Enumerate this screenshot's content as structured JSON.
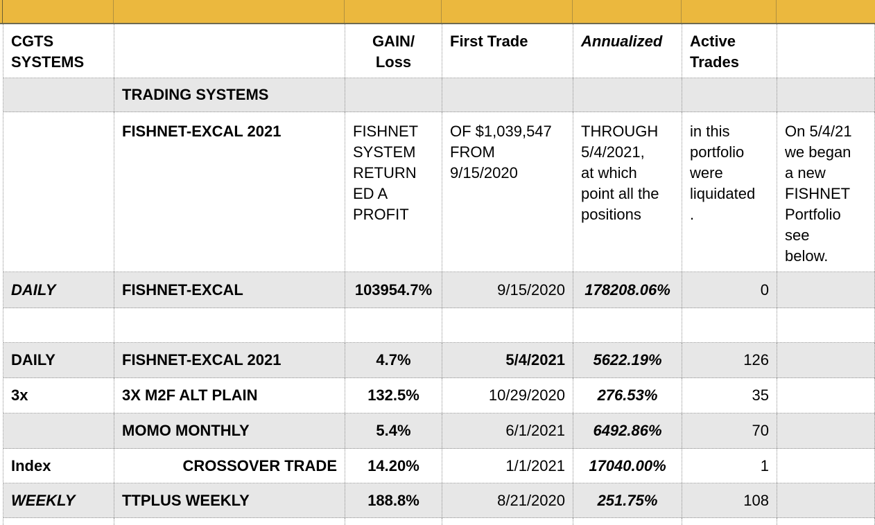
{
  "colors": {
    "gold_band": "#EBB83E",
    "gold_band_border": "#6E6A50",
    "row_gray": "#E7E7E7",
    "gridline": "#8F8F8F"
  },
  "header": {
    "system_group": "CGTS SYSTEMS",
    "gain_loss": "GAIN/\nLoss",
    "first_trade": "First Trade",
    "annualized": "Annualized",
    "active_trades": "Active Trades"
  },
  "section": {
    "title": "TRADING SYSTEMS"
  },
  "summary_row": {
    "system": "FISHNET-EXCAL 2021",
    "note_gain": "FISHNET SYSTEM RETURNED A PROFIT",
    "note_first_trade": "OF $1,039,547 FROM 9/15/2020",
    "note_annualized": "THROUGH 5/4/2021, at which point all the positions",
    "note_active": "in this portfolio were liquidated.",
    "note_extra": "On 5/4/21 we began a new FISHNET Portfolio see below."
  },
  "rows": [
    {
      "label": "DAILY",
      "system": "FISHNET-EXCAL",
      "gain": "103954.7%",
      "first_trade": "9/15/2020",
      "annualized": "178208.06%",
      "active_trades": "0"
    },
    {
      "label": "DAILY",
      "system": "FISHNET-EXCAL 2021",
      "gain": "4.7%",
      "first_trade": "5/4/2021",
      "annualized": "5622.19%",
      "active_trades": "126"
    },
    {
      "label": "3x",
      "system": "3X M2F ALT PLAIN",
      "gain": "132.5%",
      "first_trade": "10/29/2020",
      "annualized": "276.53%",
      "active_trades": "35"
    },
    {
      "label": "",
      "system": "MOMO MONTHLY",
      "gain": "5.4%",
      "first_trade": "6/1/2021",
      "annualized": "6492.86%",
      "active_trades": "70"
    },
    {
      "label": "Index",
      "system": "CROSSOVER TRADE",
      "gain": "14.20%",
      "first_trade": "1/1/2021",
      "annualized": "17040.00%",
      "active_trades": "1"
    },
    {
      "label": "WEEKLY",
      "system": "TTPLUS WEEKLY",
      "gain": "188.8%",
      "first_trade": "8/21/2020",
      "annualized": "251.75%",
      "active_trades": "108"
    }
  ]
}
